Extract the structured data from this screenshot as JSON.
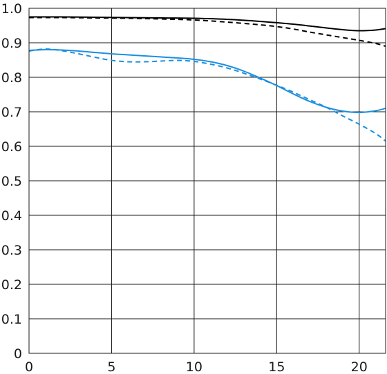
{
  "chart_data": {
    "type": "line",
    "title": "",
    "xlabel": "",
    "ylabel": "",
    "xlim": [
      0,
      21.6
    ],
    "ylim": [
      0,
      1.0
    ],
    "grid": true,
    "legend": "none",
    "x_ticks": [
      0,
      5,
      10,
      15,
      20
    ],
    "x_tick_labels": [
      "0",
      "5",
      "10",
      "15",
      "20"
    ],
    "y_ticks": [
      0,
      0.1,
      0.2,
      0.3,
      0.4,
      0.5,
      0.6,
      0.7,
      0.8,
      0.9,
      1.0
    ],
    "y_tick_labels": [
      "0",
      "0.1",
      "0.2",
      "0.3",
      "0.4",
      "0.5",
      "0.6",
      "0.7",
      "0.8",
      "0.9",
      "1.0"
    ],
    "series": [
      {
        "color": "#000000",
        "dash": "solid",
        "x": [
          0,
          2,
          4,
          6,
          8,
          10,
          12,
          14,
          16,
          18,
          19,
          20,
          21,
          21.6
        ],
        "y": [
          0.975,
          0.975,
          0.974,
          0.973,
          0.972,
          0.971,
          0.968,
          0.962,
          0.954,
          0.943,
          0.938,
          0.935,
          0.937,
          0.941
        ]
      },
      {
        "color": "#000000",
        "dash": "dashed",
        "x": [
          0,
          2,
          4,
          6,
          8,
          10,
          12,
          14,
          15,
          16,
          17,
          18,
          19,
          20,
          21,
          21.6
        ],
        "y": [
          0.973,
          0.973,
          0.972,
          0.971,
          0.969,
          0.966,
          0.96,
          0.952,
          0.947,
          0.94,
          0.931,
          0.923,
          0.915,
          0.907,
          0.898,
          0.89
        ]
      },
      {
        "color": "#1a8fe0",
        "dash": "solid",
        "x": [
          0,
          1,
          2,
          3,
          4,
          5,
          6,
          7,
          8,
          9,
          10,
          11,
          12,
          13,
          14,
          15,
          16,
          17,
          18,
          19,
          20,
          21,
          21.6
        ],
        "y": [
          0.878,
          0.88,
          0.879,
          0.876,
          0.872,
          0.868,
          0.865,
          0.862,
          0.859,
          0.856,
          0.852,
          0.845,
          0.834,
          0.818,
          0.798,
          0.776,
          0.752,
          0.73,
          0.713,
          0.702,
          0.698,
          0.703,
          0.71
        ]
      },
      {
        "color": "#1a8fe0",
        "dash": "dashed",
        "x": [
          0,
          1,
          2,
          3,
          4,
          5,
          6,
          7,
          8,
          9,
          10,
          11,
          12,
          13,
          14,
          15,
          16,
          17,
          18,
          19,
          20,
          21,
          21.6
        ],
        "y": [
          0.876,
          0.882,
          0.877,
          0.868,
          0.858,
          0.849,
          0.845,
          0.845,
          0.847,
          0.849,
          0.846,
          0.838,
          0.827,
          0.812,
          0.795,
          0.777,
          0.757,
          0.735,
          0.713,
          0.688,
          0.664,
          0.637,
          0.615
        ]
      }
    ]
  }
}
